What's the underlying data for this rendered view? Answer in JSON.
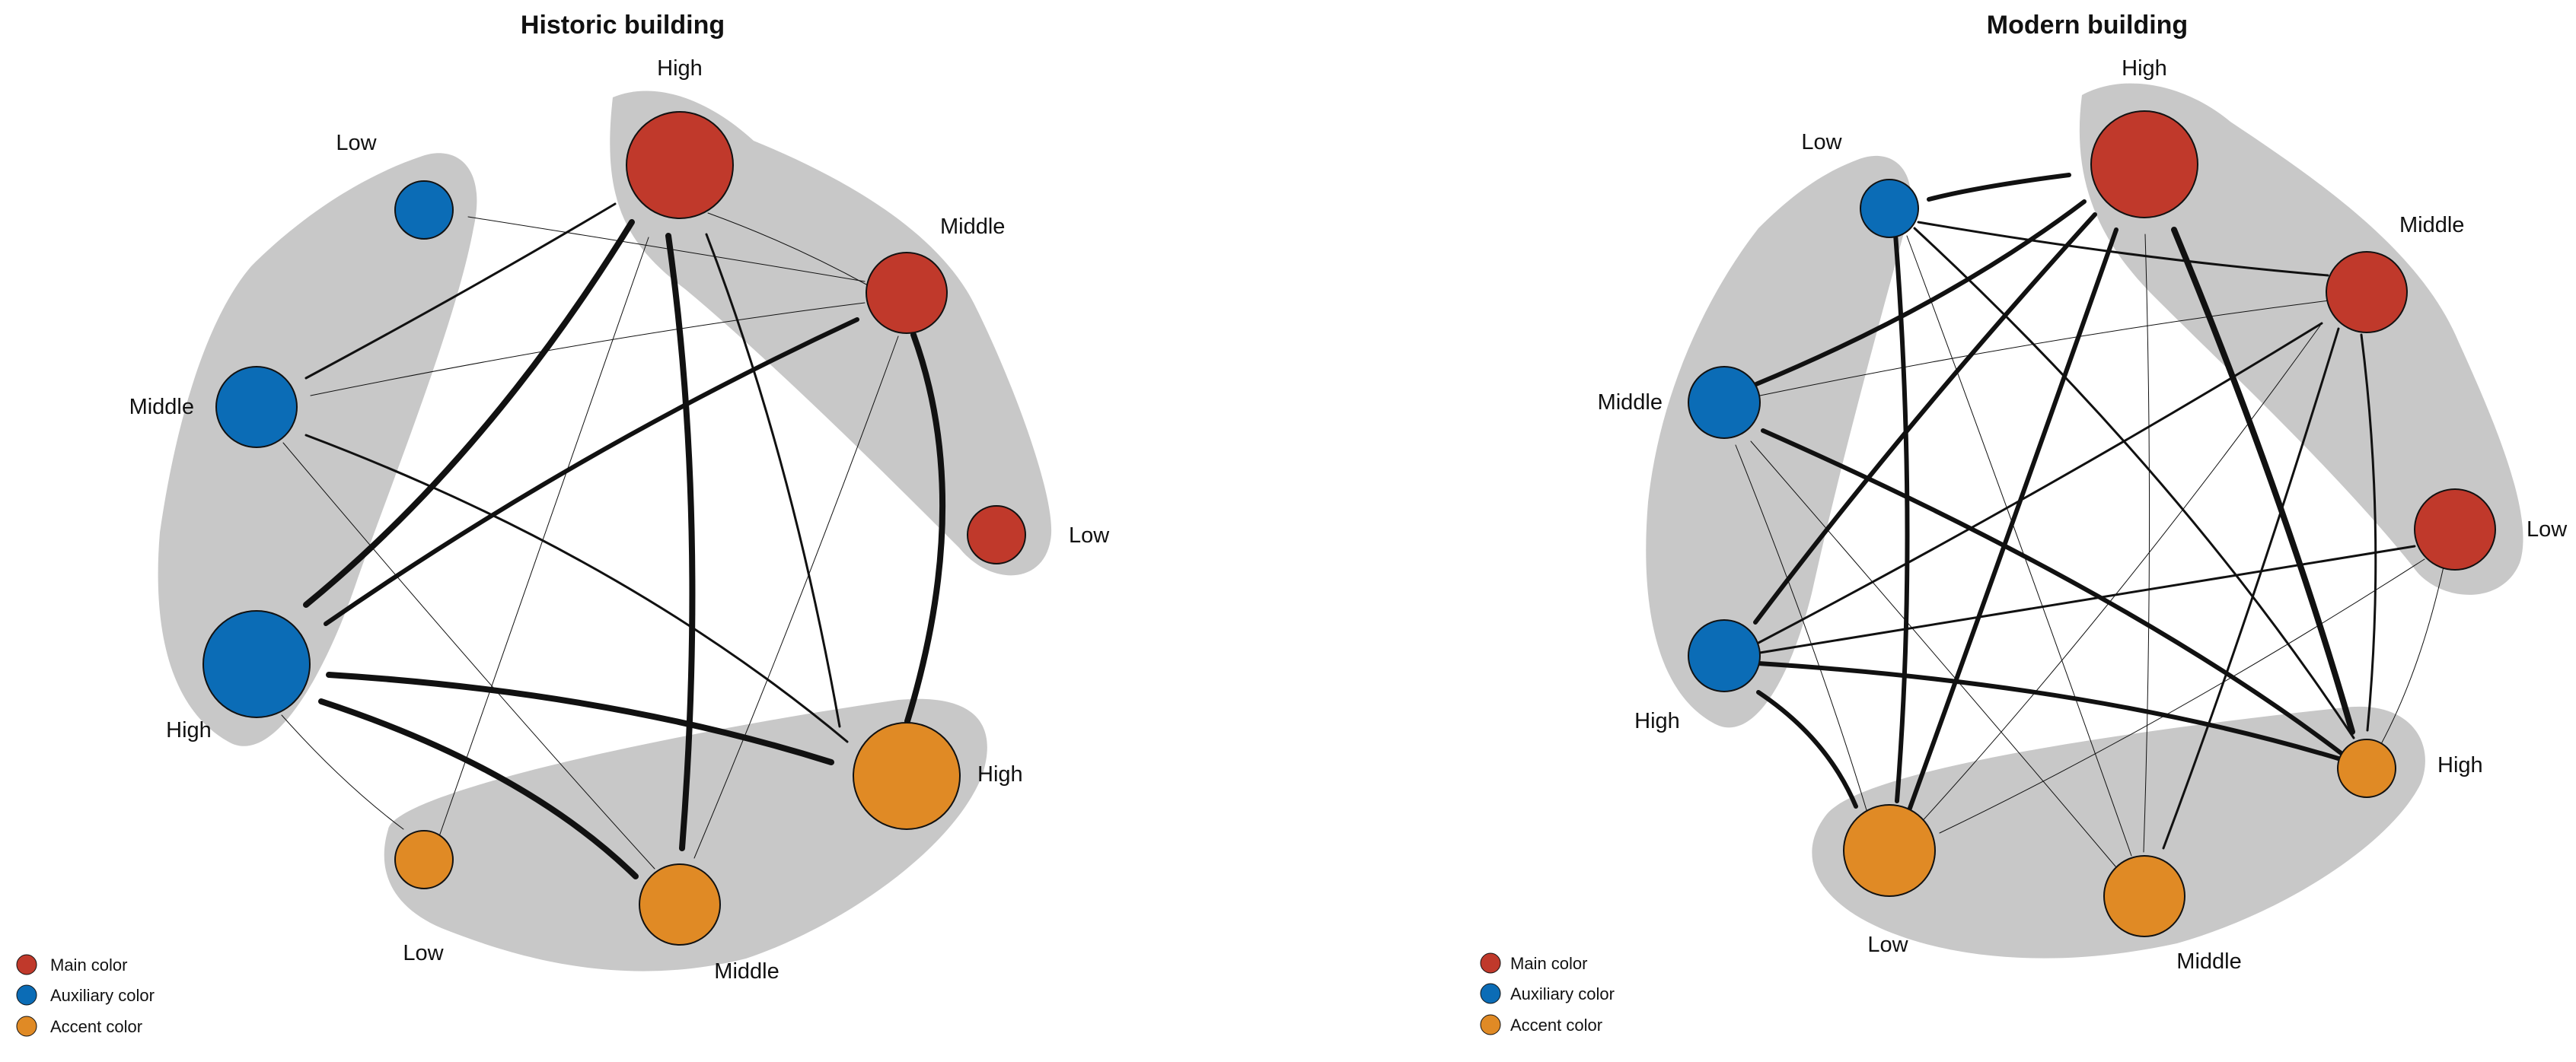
{
  "colors": {
    "main": "#c0392b",
    "auxiliary": "#0b6cb6",
    "accent": "#e08a25",
    "hull": "#c8c8c8",
    "edge": "#111111"
  },
  "panels": [
    {
      "id": "historic",
      "title": "Historic building",
      "legend": [
        {
          "label": "Main color",
          "color": "#c0392b"
        },
        {
          "label": "Auxiliary color",
          "color": "#0b6cb6"
        },
        {
          "label": "Accent color",
          "color": "#e08a25"
        }
      ],
      "nodes": [
        {
          "id": "mH",
          "group": "main",
          "label": "High",
          "importance": 4
        },
        {
          "id": "mM",
          "group": "main",
          "label": "Middle",
          "importance": 3
        },
        {
          "id": "mL",
          "group": "main",
          "label": "Low",
          "importance": 2
        },
        {
          "id": "aL",
          "group": "auxiliary",
          "label": "Low",
          "importance": 2
        },
        {
          "id": "aM",
          "group": "auxiliary",
          "label": "Middle",
          "importance": 3
        },
        {
          "id": "aH",
          "group": "auxiliary",
          "label": "High",
          "importance": 4
        },
        {
          "id": "cH",
          "group": "accent",
          "label": "High",
          "importance": 4
        },
        {
          "id": "cM",
          "group": "accent",
          "label": "Middle",
          "importance": 3
        },
        {
          "id": "cL",
          "group": "accent",
          "label": "Low",
          "importance": 2
        }
      ],
      "edges": [
        {
          "from": "mH",
          "to": "aM",
          "weight": 2
        },
        {
          "from": "mH",
          "to": "aH",
          "weight": 4
        },
        {
          "from": "mH",
          "to": "cM",
          "weight": 4
        },
        {
          "from": "mH",
          "to": "cH",
          "weight": 2
        },
        {
          "from": "mH",
          "to": "cL",
          "weight": 1
        },
        {
          "from": "mH",
          "to": "mM",
          "weight": 1
        },
        {
          "from": "aL",
          "to": "mM",
          "weight": 1
        },
        {
          "from": "aM",
          "to": "mM",
          "weight": 1
        },
        {
          "from": "mM",
          "to": "aH",
          "weight": 3
        },
        {
          "from": "mM",
          "to": "cH",
          "weight": 4
        },
        {
          "from": "mM",
          "to": "cM",
          "weight": 1
        },
        {
          "from": "aM",
          "to": "cH",
          "weight": 2
        },
        {
          "from": "aM",
          "to": "cM",
          "weight": 1
        },
        {
          "from": "aH",
          "to": "cH",
          "weight": 4
        },
        {
          "from": "aH",
          "to": "cM",
          "weight": 4
        },
        {
          "from": "aH",
          "to": "cL",
          "weight": 1
        }
      ]
    },
    {
      "id": "modern",
      "title": "Modern building",
      "legend": [
        {
          "label": "Main color",
          "color": "#c0392b"
        },
        {
          "label": "Auxiliary color",
          "color": "#0b6cb6"
        },
        {
          "label": "Accent color",
          "color": "#e08a25"
        }
      ],
      "nodes": [
        {
          "id": "mH",
          "group": "main",
          "label": "High",
          "importance": 4
        },
        {
          "id": "mM",
          "group": "main",
          "label": "Middle",
          "importance": 3
        },
        {
          "id": "mL",
          "group": "main",
          "label": "Low",
          "importance": 3
        },
        {
          "id": "aL",
          "group": "auxiliary",
          "label": "Low",
          "importance": 2
        },
        {
          "id": "aM",
          "group": "auxiliary",
          "label": "Middle",
          "importance": 2
        },
        {
          "id": "aH",
          "group": "auxiliary",
          "label": "High",
          "importance": 2
        },
        {
          "id": "cH",
          "group": "accent",
          "label": "High",
          "importance": 2
        },
        {
          "id": "cM",
          "group": "accent",
          "label": "Middle",
          "importance": 3
        },
        {
          "id": "cL",
          "group": "accent",
          "label": "Low",
          "importance": 3
        }
      ],
      "edges": [
        {
          "from": "aL",
          "to": "mH",
          "weight": 4
        },
        {
          "from": "aL",
          "to": "mM",
          "weight": 2
        },
        {
          "from": "aL",
          "to": "cL",
          "weight": 4
        },
        {
          "from": "aL",
          "to": "cM",
          "weight": 1
        },
        {
          "from": "aL",
          "to": "cH",
          "weight": 2
        },
        {
          "from": "mH",
          "to": "aM",
          "weight": 4
        },
        {
          "from": "mH",
          "to": "aH",
          "weight": 4
        },
        {
          "from": "mH",
          "to": "cL",
          "weight": 4
        },
        {
          "from": "mH",
          "to": "cM",
          "weight": 1
        },
        {
          "from": "mH",
          "to": "cH",
          "weight": 4
        },
        {
          "from": "aM",
          "to": "mM",
          "weight": 1
        },
        {
          "from": "aM",
          "to": "cH",
          "weight": 4
        },
        {
          "from": "aM",
          "to": "cM",
          "weight": 1
        },
        {
          "from": "aM",
          "to": "cL",
          "weight": 1
        },
        {
          "from": "aH",
          "to": "mM",
          "weight": 2
        },
        {
          "from": "aH",
          "to": "mL",
          "weight": 2
        },
        {
          "from": "aH",
          "to": "cH",
          "weight": 4
        },
        {
          "from": "aH",
          "to": "cL",
          "weight": 4
        },
        {
          "from": "mM",
          "to": "cL",
          "weight": 1
        },
        {
          "from": "mM",
          "to": "cM",
          "weight": 2
        },
        {
          "from": "mM",
          "to": "cH",
          "weight": 2
        },
        {
          "from": "mL",
          "to": "cL",
          "weight": 1
        },
        {
          "from": "mL",
          "to": "cH",
          "weight": 1
        }
      ]
    }
  ]
}
